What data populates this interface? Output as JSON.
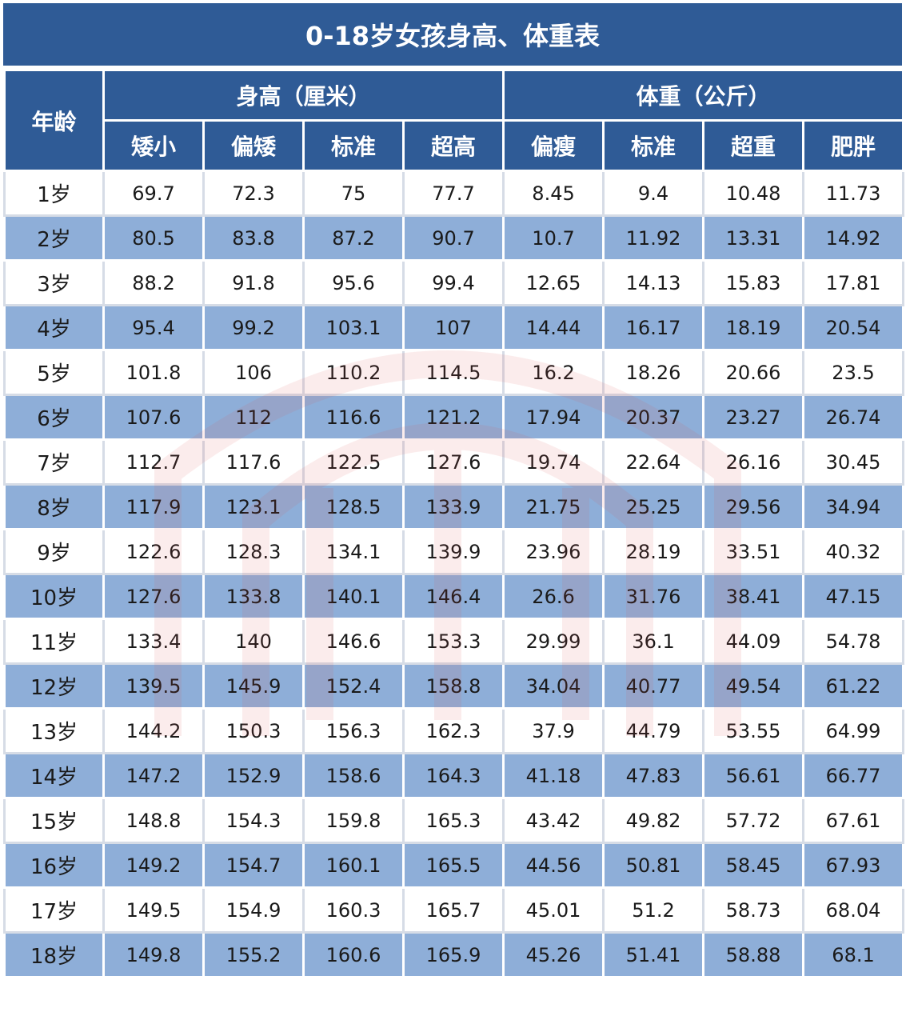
{
  "title": "0-18岁女孩身高、体重表",
  "header": {
    "age": "年龄",
    "height_group": "身高（厘米）",
    "weight_group": "体重（公斤）",
    "height_cols": [
      "矮小",
      "偏矮",
      "标准",
      "超高"
    ],
    "weight_cols": [
      "偏瘦",
      "标准",
      "超重",
      "肥胖"
    ]
  },
  "rows": [
    {
      "age": "1岁",
      "values": [
        "69.7",
        "72.3",
        "75",
        "77.7",
        "8.45",
        "9.4",
        "10.48",
        "11.73"
      ]
    },
    {
      "age": "2岁",
      "values": [
        "80.5",
        "83.8",
        "87.2",
        "90.7",
        "10.7",
        "11.92",
        "13.31",
        "14.92"
      ]
    },
    {
      "age": "3岁",
      "values": [
        "88.2",
        "91.8",
        "95.6",
        "99.4",
        "12.65",
        "14.13",
        "15.83",
        "17.81"
      ]
    },
    {
      "age": "4岁",
      "values": [
        "95.4",
        "99.2",
        "103.1",
        "107",
        "14.44",
        "16.17",
        "18.19",
        "20.54"
      ]
    },
    {
      "age": "5岁",
      "values": [
        "101.8",
        "106",
        "110.2",
        "114.5",
        "16.2",
        "18.26",
        "20.66",
        "23.5"
      ]
    },
    {
      "age": "6岁",
      "values": [
        "107.6",
        "112",
        "116.6",
        "121.2",
        "17.94",
        "20.37",
        "23.27",
        "26.74"
      ]
    },
    {
      "age": "7岁",
      "values": [
        "112.7",
        "117.6",
        "122.5",
        "127.6",
        "19.74",
        "22.64",
        "26.16",
        "30.45"
      ]
    },
    {
      "age": "8岁",
      "values": [
        "117.9",
        "123.1",
        "128.5",
        "133.9",
        "21.75",
        "25.25",
        "29.56",
        "34.94"
      ]
    },
    {
      "age": "9岁",
      "values": [
        "122.6",
        "128.3",
        "134.1",
        "139.9",
        "23.96",
        "28.19",
        "33.51",
        "40.32"
      ]
    },
    {
      "age": "10岁",
      "values": [
        "127.6",
        "133.8",
        "140.1",
        "146.4",
        "26.6",
        "31.76",
        "38.41",
        "47.15"
      ]
    },
    {
      "age": "11岁",
      "values": [
        "133.4",
        "140",
        "146.6",
        "153.3",
        "29.99",
        "36.1",
        "44.09",
        "54.78"
      ]
    },
    {
      "age": "12岁",
      "values": [
        "139.5",
        "145.9",
        "152.4",
        "158.8",
        "34.04",
        "40.77",
        "49.54",
        "61.22"
      ]
    },
    {
      "age": "13岁",
      "values": [
        "144.2",
        "150.3",
        "156.3",
        "162.3",
        "37.9",
        "44.79",
        "53.55",
        "64.99"
      ]
    },
    {
      "age": "14岁",
      "values": [
        "147.2",
        "152.9",
        "158.6",
        "164.3",
        "41.18",
        "47.83",
        "56.61",
        "66.77"
      ]
    },
    {
      "age": "15岁",
      "values": [
        "148.8",
        "154.3",
        "159.8",
        "165.3",
        "43.42",
        "49.82",
        "57.72",
        "67.61"
      ]
    },
    {
      "age": "16岁",
      "values": [
        "149.2",
        "154.7",
        "160.1",
        "165.5",
        "44.56",
        "50.81",
        "58.45",
        "67.93"
      ]
    },
    {
      "age": "17岁",
      "values": [
        "149.5",
        "154.9",
        "160.3",
        "165.7",
        "45.01",
        "51.2",
        "58.73",
        "68.04"
      ]
    },
    {
      "age": "18岁",
      "values": [
        "149.8",
        "155.2",
        "160.6",
        "165.9",
        "45.26",
        "51.41",
        "58.88",
        "68.1"
      ]
    }
  ],
  "colors": {
    "header_bg": "#2f5b96",
    "stripe_bg": "#8eaed8",
    "watermark": "#e05050"
  }
}
